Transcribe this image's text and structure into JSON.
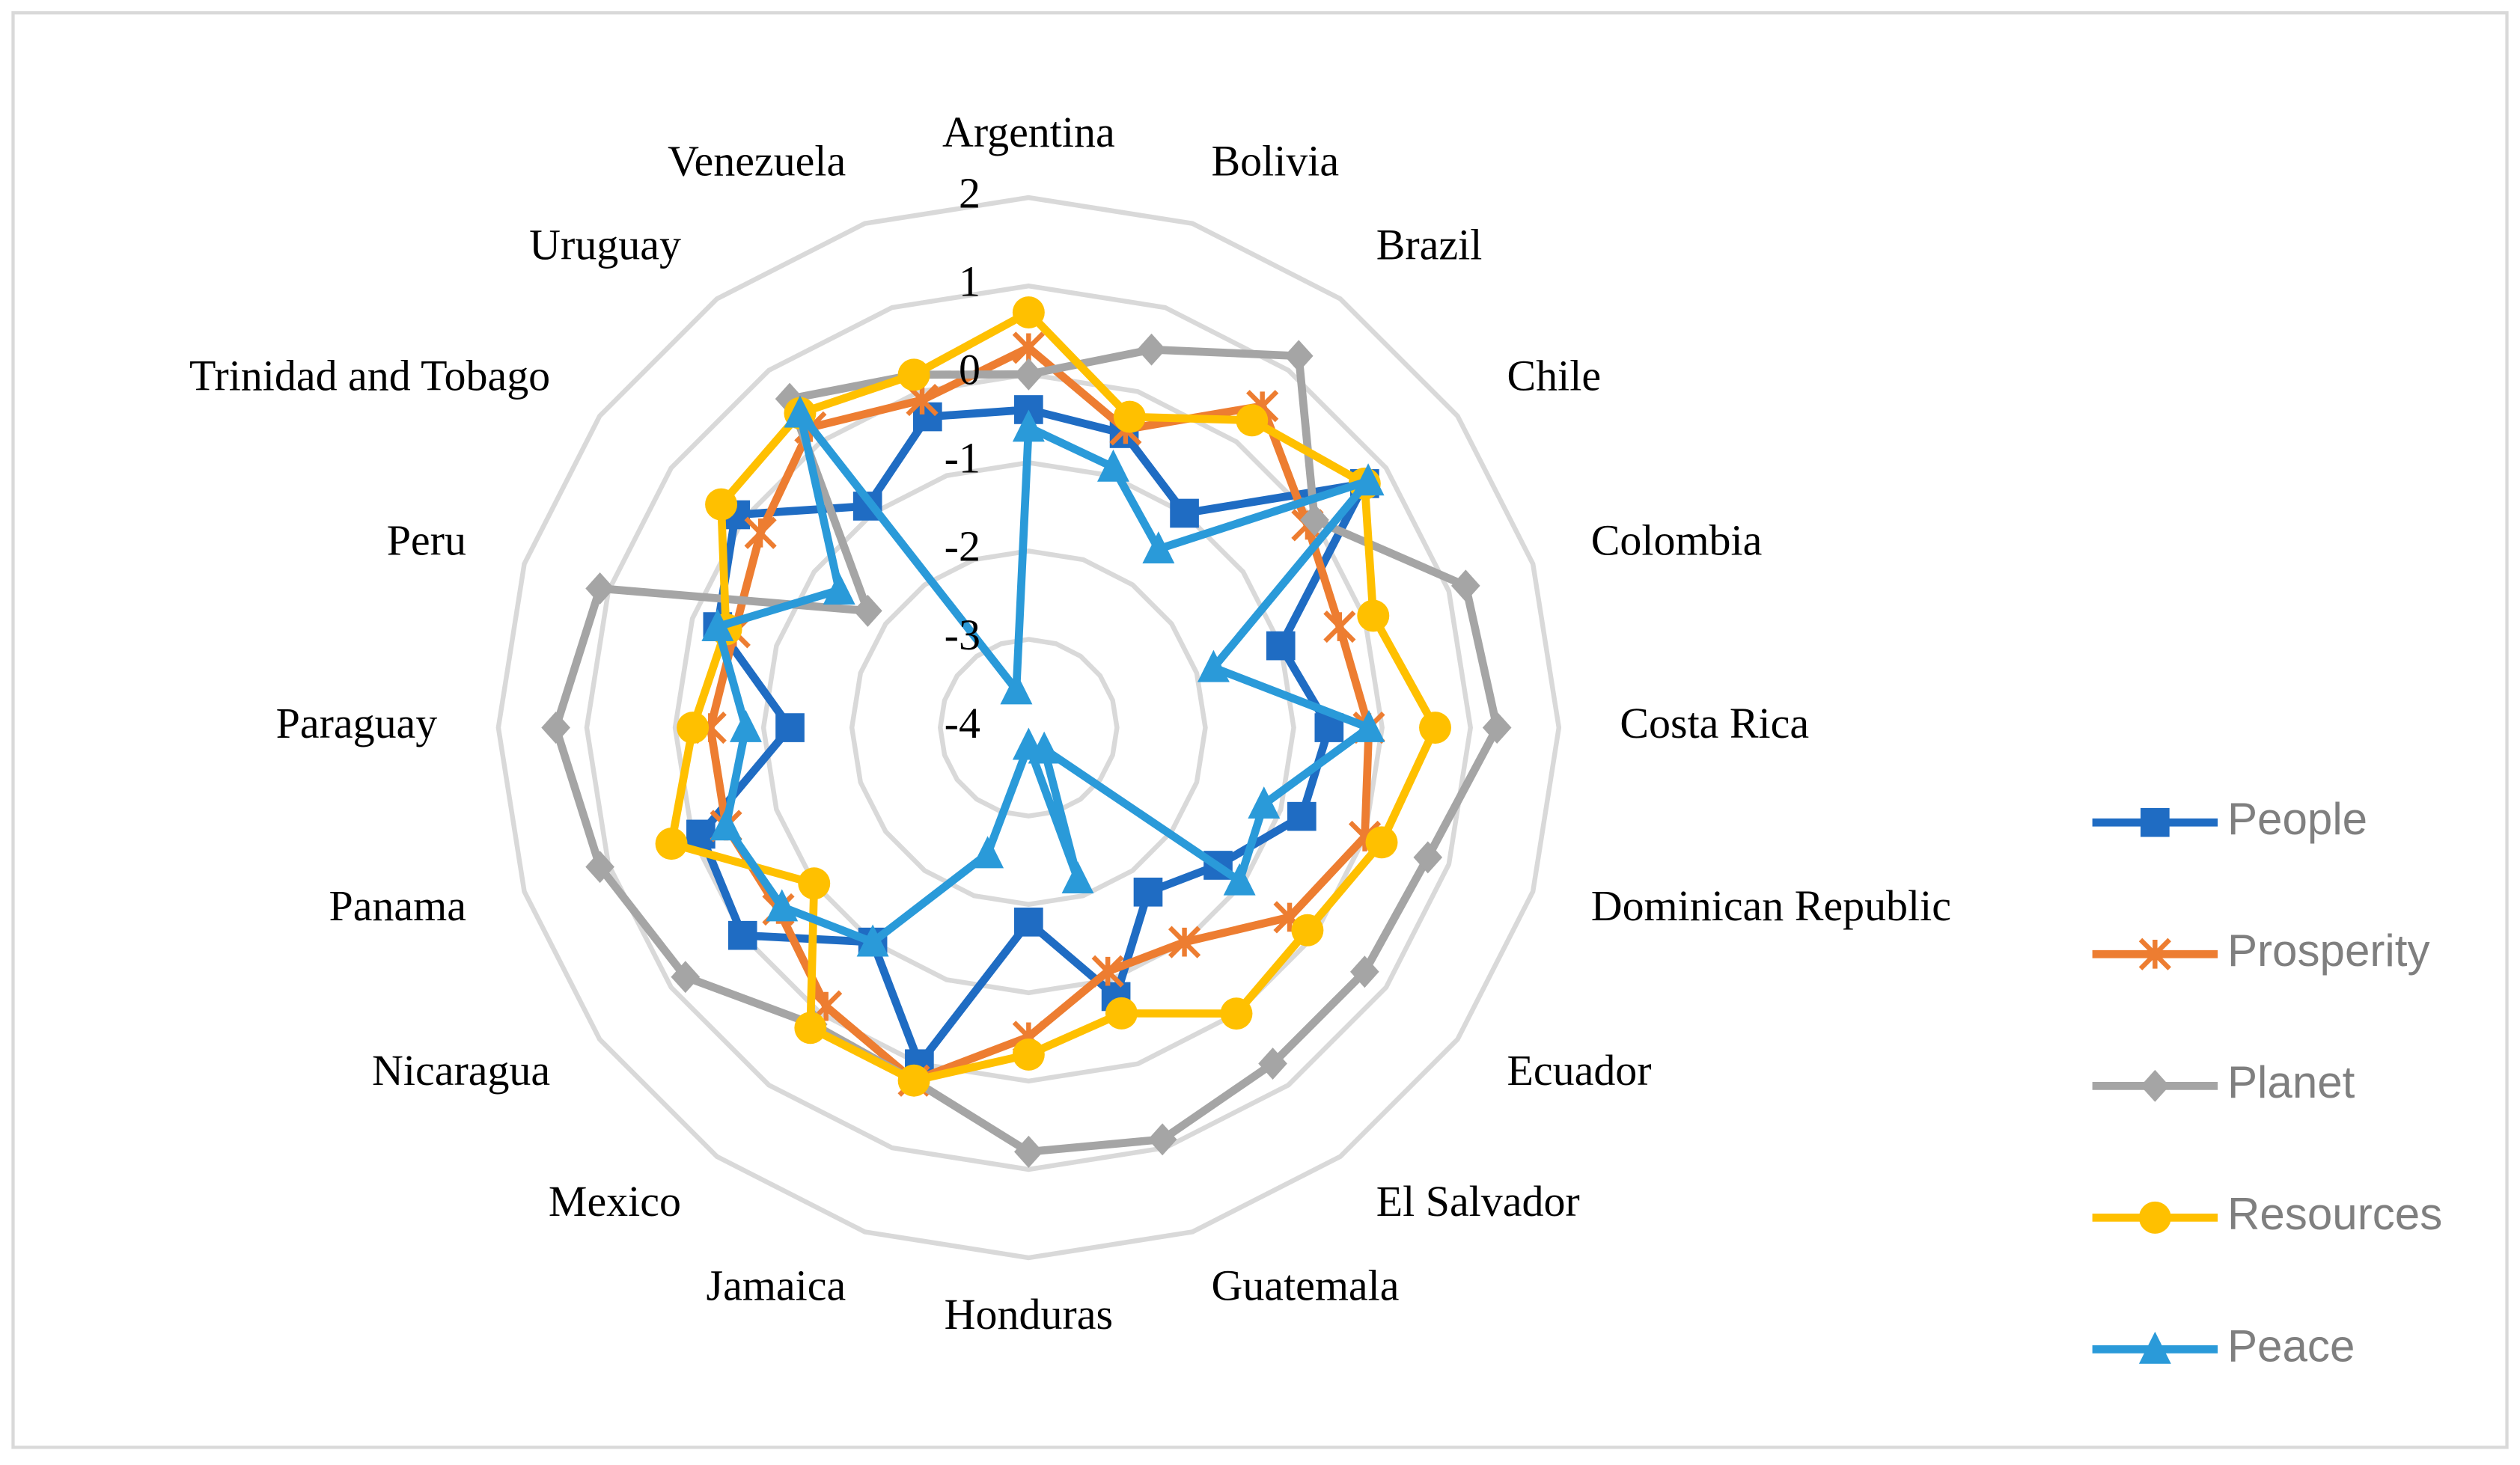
{
  "chart_data": {
    "type": "radar",
    "categories": [
      "Argentina",
      "Bolivia",
      "Brazil",
      "Chile",
      "Colombia",
      "Costa Rica",
      "Dominican Republic",
      "Ecuador",
      "El Salvador",
      "Guatemala",
      "Honduras",
      "Jamaica",
      "Mexico",
      "Nicaragua",
      "Panama",
      "Paraguay",
      "Peru",
      "Trinidad and Tobago",
      "Uruguay",
      "Venezuela"
    ],
    "ylim": [
      -4,
      2
    ],
    "yticks": [
      -4,
      -3,
      -2,
      -1,
      0,
      1,
      2
    ],
    "grid": true,
    "legend": "right",
    "series": [
      {
        "name": "People",
        "color": "#1f6cc3",
        "marker": "square",
        "values": [
          -0.4,
          -0.5,
          -1.0,
          0.7,
          -1.0,
          -0.6,
          -0.75,
          -1.35,
          -1.7,
          -0.8,
          -1.8,
          0.0,
          -1.0,
          0.0,
          -0.1,
          -1.3,
          -0.3,
          0.1,
          -0.9,
          -0.3
        ]
      },
      {
        "name": "Prosperity",
        "color": "#ed7d31",
        "marker": "star",
        "values": [
          0.3,
          -0.45,
          0.5,
          -0.1,
          -0.3,
          -0.15,
          0.0,
          -0.35,
          -1.0,
          -1.1,
          -0.5,
          0.2,
          -0.1,
          -0.5,
          -0.4,
          -0.4,
          -0.5,
          -0.25,
          0.2,
          -0.1
        ]
      },
      {
        "name": "Planet",
        "color": "#a5a5a5",
        "marker": "diamond",
        "values": [
          0.0,
          0.5,
          1.2,
          0.0,
          1.2,
          1.3,
          0.75,
          0.7,
          0.7,
          0.9,
          0.8,
          0.2,
          0.15,
          0.8,
          1.1,
          1.35,
          1.1,
          -1.75,
          0.6,
          0.2
        ]
      },
      {
        "name": "Resources",
        "color": "#ffc000",
        "marker": "circle",
        "values": [
          0.7,
          -0.3,
          0.3,
          0.7,
          0.1,
          0.6,
          0.2,
          -0.1,
          0.0,
          -0.6,
          -0.3,
          0.2,
          0.2,
          -1.0,
          0.25,
          -0.2,
          -0.4,
          0.3,
          0.4,
          0.2
        ]
      },
      {
        "name": "Peace",
        "color": "#2a9ad9",
        "marker": "triangle",
        "values": [
          -0.6,
          -0.9,
          -1.5,
          0.75,
          -1.8,
          -0.15,
          -1.2,
          -1.05,
          -3.7,
          -2.2,
          -3.8,
          -2.5,
          -1.0,
          -0.55,
          -0.4,
          -0.8,
          -0.3,
          -1.35,
          0.4,
          -3.55
        ]
      }
    ]
  }
}
